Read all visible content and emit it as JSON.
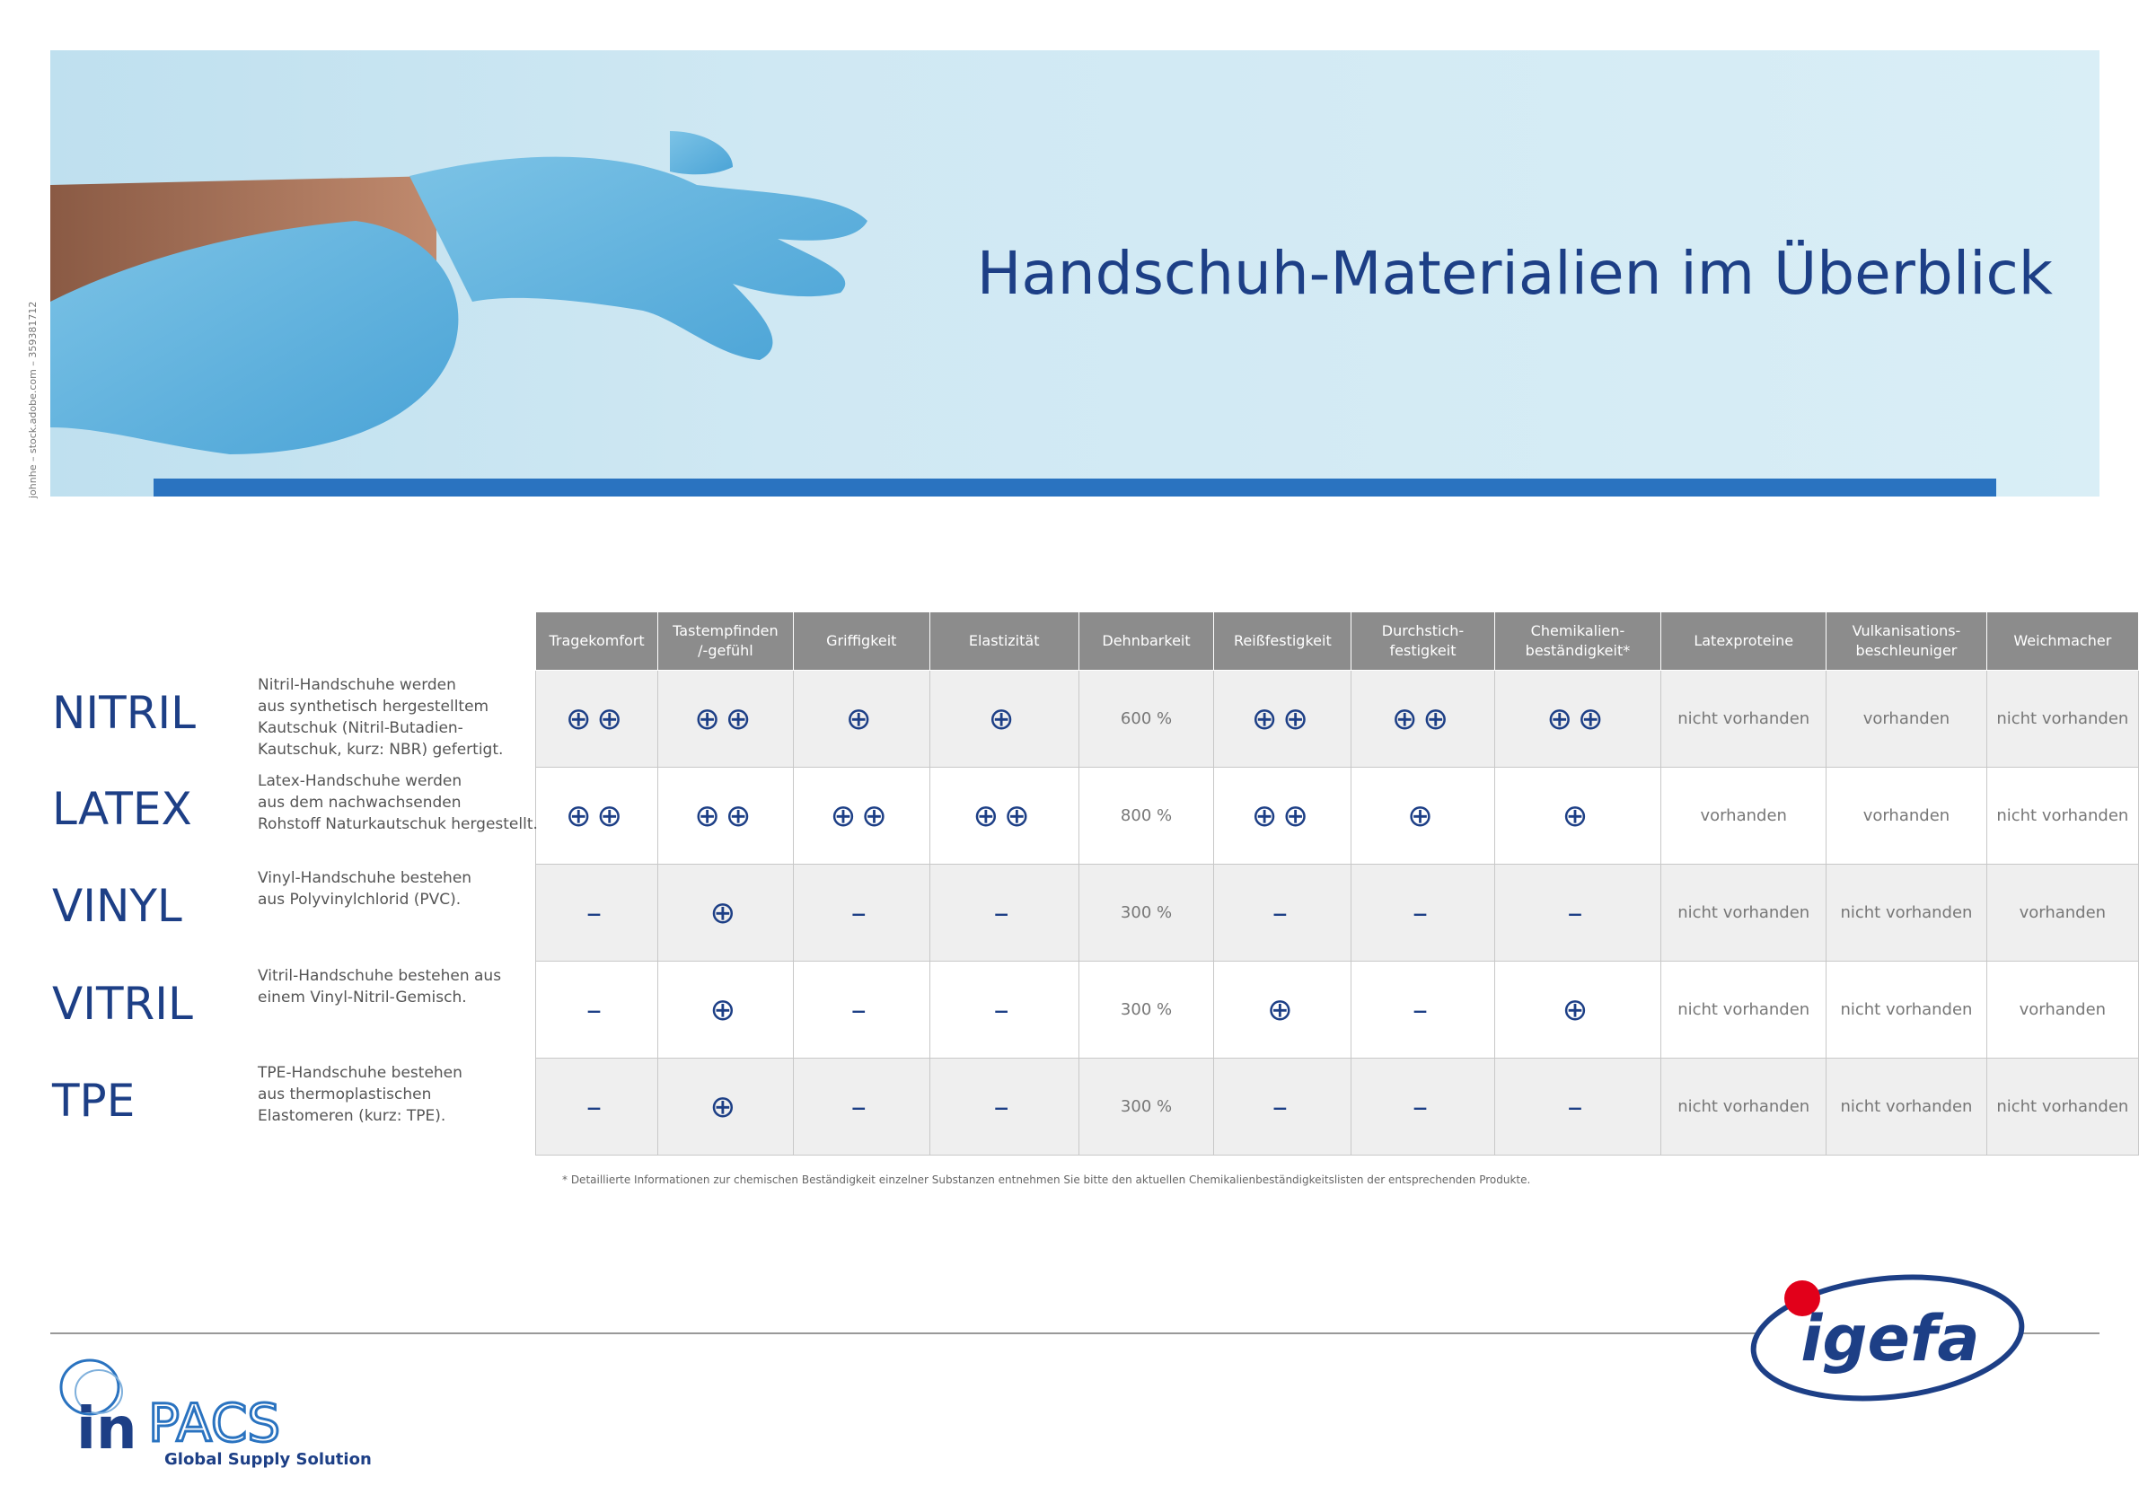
{
  "header": {
    "title": "Handschuh-Materialien im Überblick",
    "image_credit": "johnhe – stock.adobe.com – 359381712"
  },
  "table": {
    "columns": [
      "Tragekomfort",
      "Tastempfinden\n/-gefühl",
      "Griffigkeit",
      "Elastizität",
      "Dehnbarkeit",
      "Reißfestigkeit",
      "Durchstich-\nfestigkeit",
      "Chemikalien-\nbeständigkeit*",
      "Latexproteine",
      "Vulkanisations-\nbeschleuniger",
      "Weichmacher"
    ],
    "rows": [
      {
        "name": "NITRIL",
        "description": "Nitril-Handschuhe werden\naus synthetisch hergestelltem\nKautschuk (Nitril-Butadien-\nKautschuk, kurz: NBR) gefertigt.",
        "cells": [
          "⊕⊕",
          "⊕⊕",
          "⊕",
          "⊕",
          "600 %",
          "⊕⊕",
          "⊕⊕",
          "⊕⊕",
          "nicht vorhanden",
          "vorhanden",
          "nicht vorhanden"
        ]
      },
      {
        "name": "LATEX",
        "description": "Latex-Handschuhe werden\naus dem nachwachsenden\nRohstoff Naturkautschuk hergestellt.",
        "cells": [
          "⊕⊕",
          "⊕⊕",
          "⊕⊕",
          "⊕⊕",
          "800 %",
          "⊕⊕",
          "⊕",
          "⊕",
          "vorhanden",
          "vorhanden",
          "nicht vorhanden"
        ]
      },
      {
        "name": "VINYL",
        "description": "Vinyl-Handschuhe bestehen\naus Polyvinylchlorid (PVC).",
        "cells": [
          "–",
          "⊕",
          "–",
          "–",
          "300 %",
          "–",
          "–",
          "–",
          "nicht vorhanden",
          "nicht vorhanden",
          "vorhanden"
        ]
      },
      {
        "name": "VITRIL",
        "description": "Vitril-Handschuhe bestehen aus\neinem Vinyl-Nitril-Gemisch.",
        "cells": [
          "–",
          "⊕",
          "–",
          "–",
          "300 %",
          "⊕",
          "–",
          "⊕",
          "nicht vorhanden",
          "nicht vorhanden",
          "vorhanden"
        ]
      },
      {
        "name": "TPE",
        "description": "TPE-Handschuhe bestehen\naus thermoplastischen\nElastomeren (kurz: TPE).",
        "cells": [
          "–",
          "⊕",
          "–",
          "–",
          "300 %",
          "–",
          "–",
          "–",
          "nicht vorhanden",
          "nicht vorhanden",
          "nicht vorhanden"
        ]
      }
    ]
  },
  "footnote": "*  Detaillierte Informationen zur chemischen Beständigkeit einzelner Substanzen entnehmen Sie bitte den aktuellen Chemikalienbeständigkeitslisten der entsprechenden Produkte.",
  "footer": {
    "logo_left_mark": "in",
    "logo_left_name": "PACS",
    "logo_left_tagline": "Global Supply Solution",
    "logo_right": "igefa"
  }
}
